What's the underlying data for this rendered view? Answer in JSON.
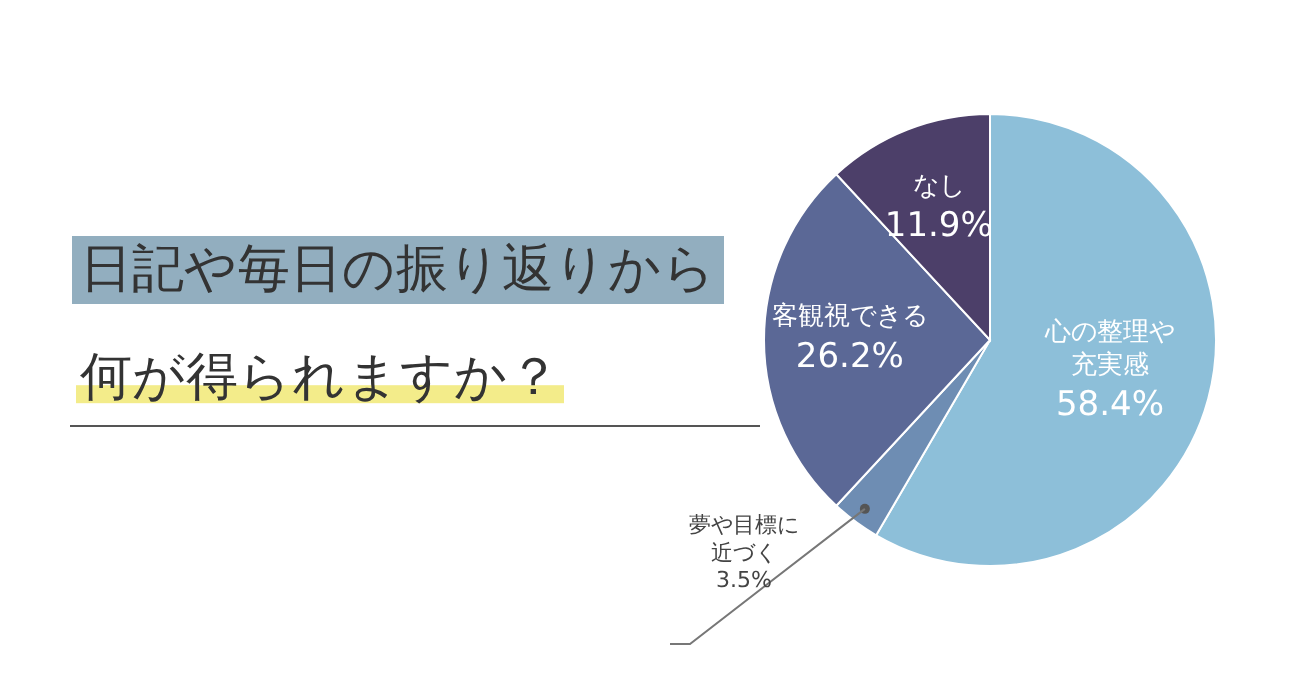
{
  "chart_data": {
    "type": "pie",
    "title": "日記や毎日の振り返りから",
    "subtitle": "何が得られますか？",
    "categories": [
      "心の整理や充実感",
      "夢や目標に近づく",
      "客観視できる",
      "なし"
    ],
    "values": [
      58.4,
      3.5,
      26.2,
      11.9
    ],
    "value_labels": [
      "58.4%",
      "3.5%",
      "26.2%",
      "11.9%"
    ],
    "colors": [
      "#8dbfd9",
      "#6e8db3",
      "#5b6896",
      "#4c3f69"
    ]
  }
}
